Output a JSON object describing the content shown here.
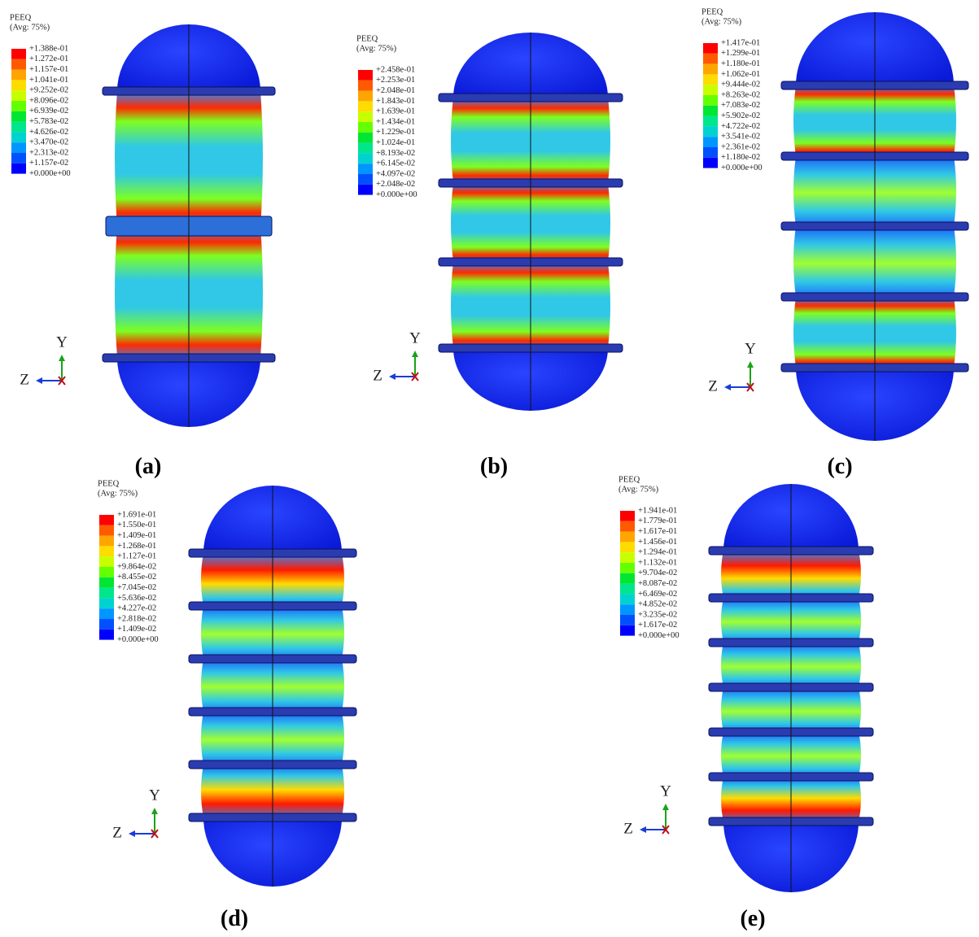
{
  "panels": [
    {
      "caption": "(a)",
      "legend": {
        "title": "PEEQ",
        "subtitle": "(Avg: 75%)",
        "levels": [
          "+1.388e-01",
          "+1.272e-01",
          "+1.157e-01",
          "+1.041e-01",
          "+9.252e-02",
          "+8.096e-02",
          "+6.939e-02",
          "+5.783e-02",
          "+4.626e-02",
          "+3.470e-02",
          "+2.313e-02",
          "+1.157e-02",
          "+0.000e+00"
        ]
      },
      "triad": {
        "y": "Y",
        "z": "Z"
      }
    },
    {
      "caption": "(b)",
      "legend": {
        "title": "PEEQ",
        "subtitle": "(Avg: 75%)",
        "levels": [
          "+2.458e-01",
          "+2.253e-01",
          "+2.048e-01",
          "+1.843e-01",
          "+1.639e-01",
          "+1.434e-01",
          "+1.229e-01",
          "+1.024e-01",
          "+8.193e-02",
          "+6.145e-02",
          "+4.097e-02",
          "+2.048e-02",
          "+0.000e+00"
        ]
      },
      "triad": {
        "y": "Y",
        "z": "Z"
      }
    },
    {
      "caption": "(c)",
      "legend": {
        "title": "PEEQ",
        "subtitle": "(Avg: 75%)",
        "levels": [
          "+1.417e-01",
          "+1.299e-01",
          "+1.180e-01",
          "+1.062e-01",
          "+9.444e-02",
          "+8.263e-02",
          "+7.083e-02",
          "+5.902e-02",
          "+4.722e-02",
          "+3.541e-02",
          "+2.361e-02",
          "+1.180e-02",
          "+0.000e+00"
        ]
      },
      "triad": {
        "y": "Y",
        "z": "Z"
      }
    },
    {
      "caption": "(d)",
      "legend": {
        "title": "PEEQ",
        "subtitle": "(Avg: 75%)",
        "levels": [
          "+1.691e-01",
          "+1.550e-01",
          "+1.409e-01",
          "+1.268e-01",
          "+1.127e-01",
          "+9.864e-02",
          "+8.455e-02",
          "+7.045e-02",
          "+5.636e-02",
          "+4.227e-02",
          "+2.818e-02",
          "+1.409e-02",
          "+0.000e+00"
        ]
      },
      "triad": {
        "y": "Y",
        "z": "Z"
      }
    },
    {
      "caption": "(e)",
      "legend": {
        "title": "PEEQ",
        "subtitle": "(Avg: 75%)",
        "levels": [
          "+1.941e-01",
          "+1.779e-01",
          "+1.617e-01",
          "+1.456e-01",
          "+1.294e-01",
          "+1.132e-01",
          "+9.704e-02",
          "+8.087e-02",
          "+6.469e-02",
          "+4.852e-02",
          "+3.235e-02",
          "+1.617e-02",
          "+0.000e+00"
        ]
      },
      "triad": {
        "y": "Y",
        "z": "Z"
      }
    }
  ]
}
